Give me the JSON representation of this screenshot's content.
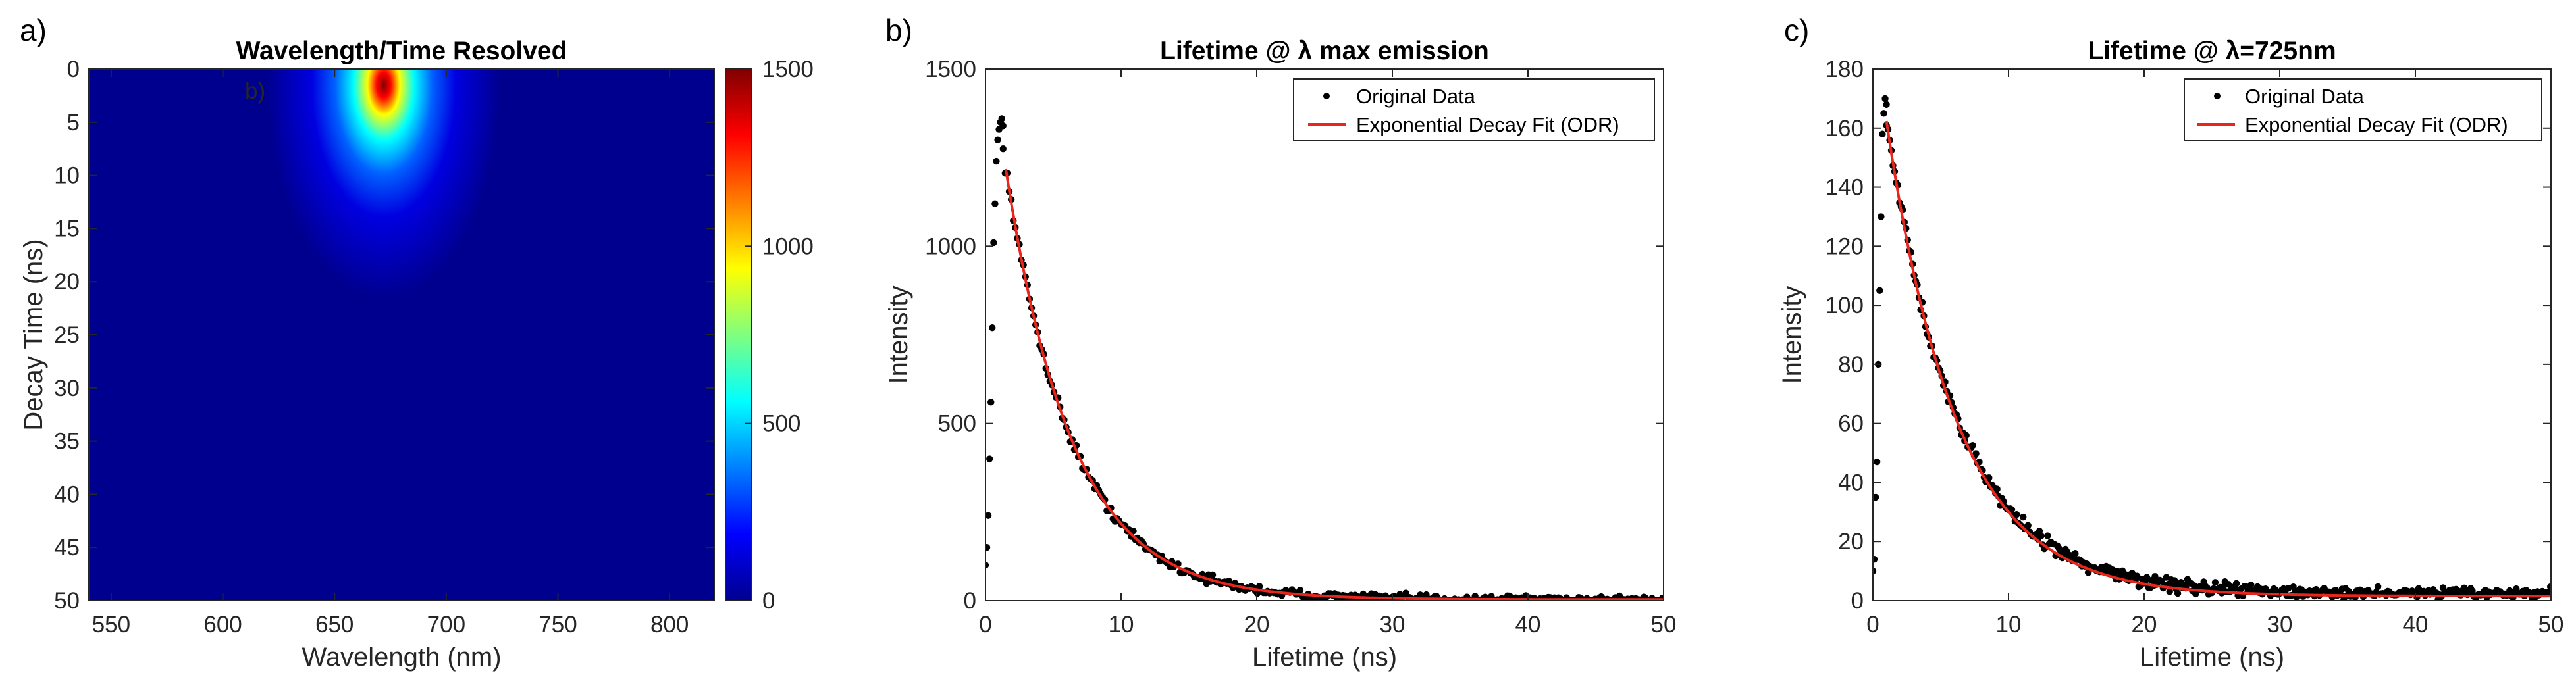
{
  "chart_data": [
    {
      "type": "heatmap",
      "panel_label": "a)",
      "title": "Wavelength/Time Resolved",
      "xlabel": "Wavelength (nm)",
      "ylabel": "Decay Time (ns)",
      "xlim": [
        540,
        820
      ],
      "ylim": [
        0,
        50
      ],
      "y_reversed": true,
      "x_ticks": [
        550,
        600,
        650,
        700,
        750,
        800
      ],
      "y_ticks": [
        0,
        5,
        10,
        15,
        20,
        25,
        30,
        35,
        40,
        45,
        50
      ],
      "colorbar": {
        "min": 0,
        "max": 1500,
        "ticks": [
          0,
          500,
          1000,
          1500
        ],
        "colormap": "jet"
      },
      "peak": {
        "wavelength": 672,
        "time": 1.5,
        "value": 1500,
        "spectral_width_nm": 20,
        "decay_ns": 5
      },
      "inset_annotation": "b)"
    },
    {
      "type": "scatter",
      "panel_label": "b)",
      "title": "Lifetime @ λ max emission",
      "xlabel": "Lifetime (ns)",
      "ylabel": "Intensity",
      "xlim": [
        0,
        50
      ],
      "ylim": [
        0,
        1500
      ],
      "x_ticks": [
        0,
        10,
        20,
        30,
        40,
        50
      ],
      "y_ticks": [
        0,
        500,
        1000,
        1500
      ],
      "legend": [
        "Original Data",
        "Exponential Decay Fit (ODR)"
      ],
      "legend_position": "top-right",
      "series": [
        {
          "name": "Original Data",
          "kind": "points",
          "rise": [
            [
              0.0,
              100
            ],
            [
              0.1,
              150
            ],
            [
              0.2,
              240
            ],
            [
              0.3,
              400
            ],
            [
              0.4,
              560
            ],
            [
              0.5,
              770
            ],
            [
              0.6,
              1010
            ],
            [
              0.7,
              1120
            ],
            [
              0.8,
              1240
            ],
            [
              0.9,
              1300
            ],
            [
              1.0,
              1330
            ],
            [
              1.1,
              1350
            ],
            [
              1.2,
              1360
            ],
            [
              1.3,
              1340
            ]
          ],
          "decay_model": {
            "amplitude": 1650,
            "tau": 4.9,
            "offset": 3,
            "t_start": 1.3,
            "t_end": 50,
            "step": 0.15,
            "noise": 18
          }
        },
        {
          "name": "Exponential Decay Fit (ODR)",
          "kind": "line",
          "fit_model": {
            "amplitude": 1650,
            "tau": 4.9,
            "offset": 3,
            "t_start": 1.5,
            "t_end": 50
          }
        }
      ]
    },
    {
      "type": "scatter",
      "panel_label": "c)",
      "title": "Lifetime @ λ=725nm",
      "xlabel": "Lifetime (ns)",
      "ylabel": "Intensity",
      "xlim": [
        0,
        50
      ],
      "ylim": [
        0,
        180
      ],
      "x_ticks": [
        0,
        10,
        20,
        30,
        40,
        50
      ],
      "y_ticks": [
        0,
        20,
        40,
        60,
        80,
        100,
        120,
        140,
        160,
        180
      ],
      "legend": [
        "Original Data",
        "Exponential Decay Fit (ODR)"
      ],
      "legend_position": "top-right",
      "series": [
        {
          "name": "Original Data",
          "kind": "points",
          "rise": [
            [
              0.0,
              10
            ],
            [
              0.1,
              14
            ],
            [
              0.2,
              35
            ],
            [
              0.3,
              47
            ],
            [
              0.4,
              80
            ],
            [
              0.5,
              105
            ],
            [
              0.6,
              130
            ],
            [
              0.7,
              158
            ],
            [
              0.8,
              165
            ],
            [
              0.9,
              170
            ],
            [
              1.0,
              168
            ]
          ],
          "decay_model": {
            "amplitude": 195,
            "tau": 5.2,
            "offset": 2.5,
            "t_start": 1.0,
            "t_end": 50,
            "step": 0.12,
            "noise": 3
          }
        },
        {
          "name": "Exponential Decay Fit (ODR)",
          "kind": "line",
          "fit_model": {
            "amplitude": 195,
            "tau": 5.2,
            "offset": 1.5,
            "t_start": 1.0,
            "t_end": 50
          }
        }
      ]
    }
  ],
  "colors": {
    "points": "#000000",
    "fit": "#e8261c",
    "axes": "#262626",
    "legend_border": "#262626",
    "heatmap_bg": "#00008f"
  }
}
